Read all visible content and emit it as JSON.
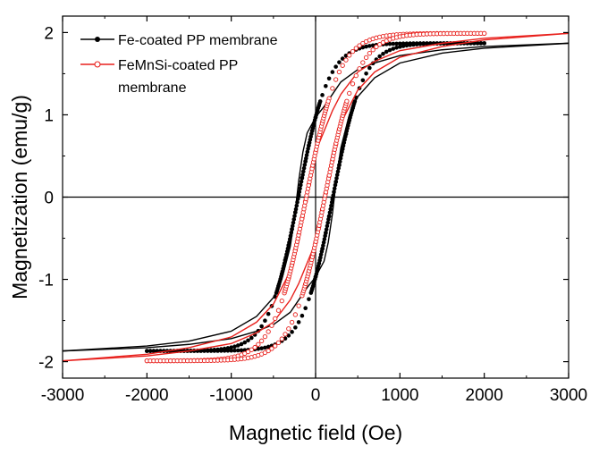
{
  "chart_data": {
    "type": "line",
    "xlabel": "Magnetic field (Oe)",
    "ylabel": "Magnetization (emu/g)",
    "xlim": [
      -3000,
      3000
    ],
    "ylim": [
      -2.2,
      2.2
    ],
    "x_ticks": [
      -3000,
      -2000,
      -1000,
      0,
      1000,
      2000,
      3000
    ],
    "x_tick_labels": [
      "-3000",
      "-2000",
      "-1000",
      "0",
      "1000",
      "2000",
      "3000"
    ],
    "y_ticks": [
      -2,
      -1,
      0,
      1,
      2
    ],
    "y_tick_labels": [
      "-2",
      "-1",
      "0",
      "1",
      "2"
    ],
    "zero_lines": true,
    "legend_placement": "top-left",
    "series": [
      {
        "name": "Fe-coated PP membrane",
        "color": "#000000",
        "marker": "filled-circle",
        "marker_range": [
          -2000,
          2000
        ],
        "line_range": [
          -3000,
          3000
        ],
        "ms": 1.87,
        "mr": 0.97,
        "hc": 205,
        "loops": [
          {
            "branch": "descending",
            "x": [
              3000,
              2000,
              1500,
              1000,
              700,
              500,
              300,
              200,
              100,
              0,
              -100,
              -150,
              -200,
              -250,
              -300,
              -400,
              -500,
              -700,
              -1000,
              -1500,
              -2000,
              -3000
            ],
            "y": [
              1.87,
              1.83,
              1.79,
              1.72,
              1.63,
              1.55,
              1.4,
              1.25,
              1.1,
              0.97,
              0.78,
              0.55,
              0.2,
              -0.25,
              -0.6,
              -1.0,
              -1.22,
              -1.45,
              -1.63,
              -1.75,
              -1.81,
              -1.87
            ]
          },
          {
            "branch": "ascending",
            "x": [
              -3000,
              -2000,
              -1500,
              -1000,
              -700,
              -500,
              -300,
              -200,
              -100,
              0,
              100,
              150,
              200,
              250,
              300,
              400,
              500,
              700,
              1000,
              1500,
              2000,
              3000
            ],
            "y": [
              -1.87,
              -1.83,
              -1.79,
              -1.72,
              -1.63,
              -1.55,
              -1.4,
              -1.25,
              -1.1,
              -0.97,
              -0.78,
              -0.55,
              -0.2,
              0.25,
              0.6,
              1.0,
              1.22,
              1.45,
              1.63,
              1.75,
              1.81,
              1.87
            ]
          }
        ]
      },
      {
        "name": "FeMnSi-coated PP membrane",
        "color": "#e8211d",
        "marker": "open-circle",
        "marker_range": [
          -2000,
          2000
        ],
        "line_range": [
          -3000,
          3000
        ],
        "ms": 1.99,
        "mr": 0.55,
        "hc": 110,
        "loops": [
          {
            "branch": "descending",
            "x": [
              3000,
              2000,
              1500,
              1000,
              700,
              500,
              300,
              200,
              100,
              0,
              -50,
              -100,
              -150,
              -200,
              -300,
              -500,
              -700,
              -1000,
              -1500,
              -2000,
              -3000
            ],
            "y": [
              1.99,
              1.93,
              1.87,
              1.78,
              1.65,
              1.52,
              1.25,
              1.05,
              0.8,
              0.55,
              0.3,
              0.05,
              -0.25,
              -0.55,
              -0.9,
              -1.3,
              -1.52,
              -1.7,
              -1.83,
              -1.91,
              -1.99
            ]
          },
          {
            "branch": "ascending",
            "x": [
              -3000,
              -2000,
              -1500,
              -1000,
              -700,
              -500,
              -300,
              -200,
              -100,
              0,
              50,
              100,
              150,
              200,
              300,
              500,
              700,
              1000,
              1500,
              2000,
              3000
            ],
            "y": [
              -1.99,
              -1.93,
              -1.87,
              -1.78,
              -1.65,
              -1.52,
              -1.25,
              -1.05,
              -0.8,
              -0.55,
              -0.3,
              -0.05,
              0.25,
              0.55,
              0.9,
              1.3,
              1.52,
              1.7,
              1.83,
              1.91,
              1.99
            ]
          }
        ]
      }
    ]
  }
}
